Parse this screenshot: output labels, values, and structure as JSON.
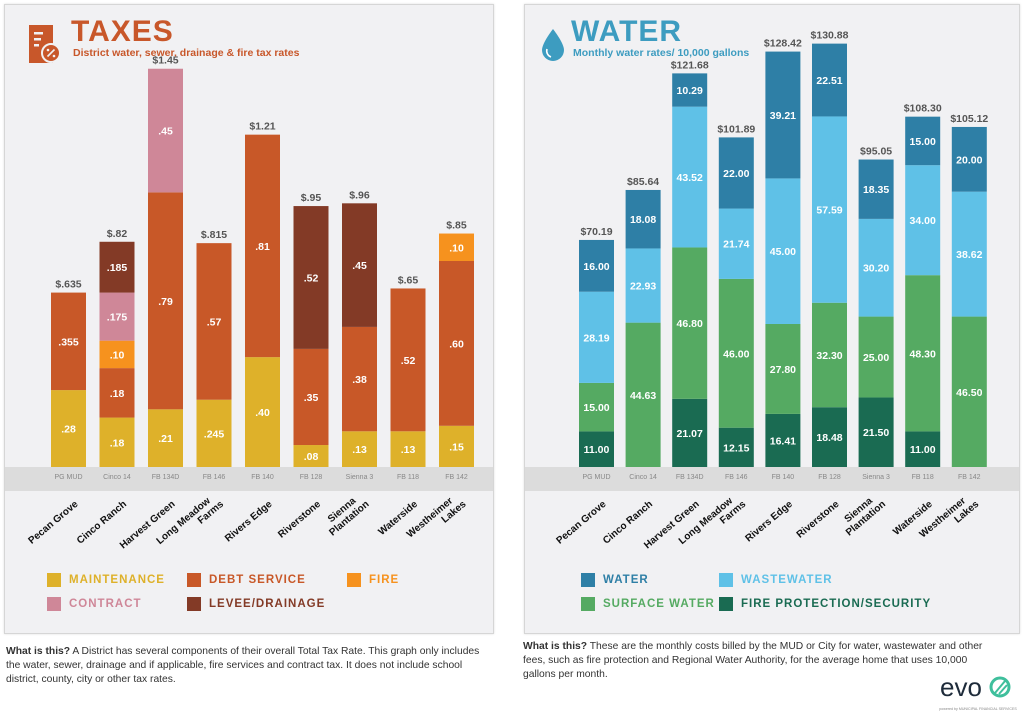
{
  "taxes": {
    "title": "TAXES",
    "subtitle": "District water, sewer, drainage & fire tax rates",
    "icon": "tax-document-percent-icon",
    "accent": "#c8572a",
    "note_bold": "What is this?",
    "note_text": " A District has several components of their overall Total Tax Rate.  This graph only includes the water, sewer, drainage and if applicable, fire services and contract tax.  It does not include school district, county, city or other tax rates."
  },
  "water": {
    "title": "WATER",
    "subtitle": "Monthly water rates/ 10,000 gallons",
    "icon": "water-drop-icon",
    "accent": "#3d9cc0",
    "note_bold": "What is this?",
    "note_text": " These are the monthly costs billed by the MUD or City for water, wastewater and other fees, such as fire protection and Regional Water Authority, for the average home that uses 10,000 gallons per month."
  },
  "logo": {
    "text": "evo",
    "tagline": "powered by MUNICIPAL FINANCIAL SERVICES"
  },
  "chart_data": [
    {
      "type": "bar",
      "stacked": true,
      "title": "TAXES",
      "subtitle": "District water, sewer, drainage & fire tax rates",
      "categories": [
        "Pecan Grove",
        "Cinco Ranch",
        "Harvest Green",
        "Long Meadow Farms",
        "Rivers Edge",
        "Riverstone",
        "Sienna Plantation",
        "Waterside",
        "Westheimer Lakes"
      ],
      "category_lines": [
        [
          "Pecan Grove"
        ],
        [
          "Cinco Ranch"
        ],
        [
          "Harvest Green"
        ],
        [
          "Long Meadow",
          "Farms"
        ],
        [
          "Rivers Edge"
        ],
        [
          "Riverstone"
        ],
        [
          "Sienna",
          "Plantation"
        ],
        [
          "Waterside"
        ],
        [
          "Westheimer",
          "Lakes"
        ]
      ],
      "district_codes": [
        "PG MUD",
        "Cinco 14",
        "FB 134D",
        "FB 146",
        "FB 140",
        "FB 128",
        "Sienna 3",
        "FB 118",
        "FB 142"
      ],
      "totals": [
        "$.635",
        "$.82",
        "$1.45",
        "$.815",
        "$1.21",
        "$.95",
        "$.96",
        "$.65",
        "$.85"
      ],
      "ylim": [
        0,
        1.5
      ],
      "grid": false,
      "legend_position": "bottom",
      "series": [
        {
          "name": "MAINTENANCE",
          "color": "#deb12a",
          "values": [
            0.28,
            0.18,
            0.21,
            0.245,
            0.4,
            0.08,
            0.13,
            0.13,
            0.15
          ],
          "labels": [
            ".28",
            ".18",
            ".21",
            ".245",
            ".40",
            ".08",
            ".13",
            ".13",
            ".15"
          ]
        },
        {
          "name": "DEBT SERVICE",
          "color": "#c85828",
          "values": [
            0.355,
            0.18,
            0.79,
            0.57,
            0.81,
            0.35,
            0.38,
            0.52,
            0.6
          ],
          "labels": [
            ".355",
            ".18",
            ".79",
            ".57",
            ".81",
            ".35",
            ".38",
            ".52",
            ".60"
          ]
        },
        {
          "name": "FIRE",
          "color": "#f6921e",
          "values": [
            0,
            0.1,
            0,
            0,
            0,
            0,
            0,
            0,
            0.1
          ],
          "labels": [
            "",
            ".10",
            "",
            "",
            "",
            "",
            "",
            "",
            ".10"
          ]
        },
        {
          "name": "CONTRACT",
          "color": "#cf8798",
          "values": [
            0,
            0.175,
            0.45,
            0,
            0,
            0,
            0,
            0,
            0
          ],
          "labels": [
            "",
            ".175",
            ".45",
            "",
            "",
            "",
            "",
            "",
            ""
          ]
        },
        {
          "name": "LEVEE/DRAINAGE",
          "color": "#833a26",
          "values": [
            0,
            0.185,
            0,
            0,
            0,
            0.52,
            0.45,
            0,
            0
          ],
          "labels": [
            "",
            ".185",
            "",
            "",
            "",
            ".52",
            ".45",
            "",
            ""
          ]
        }
      ],
      "legend_layout": [
        [
          "MAINTENANCE",
          "DEBT SERVICE",
          "FIRE"
        ],
        [
          "CONTRACT",
          "LEVEE/DRAINAGE"
        ]
      ]
    },
    {
      "type": "bar",
      "stacked": true,
      "title": "WATER",
      "subtitle": "Monthly water rates/ 10,000 gallons",
      "categories": [
        "Pecan Grove",
        "Cinco Ranch",
        "Harvest Green",
        "Long Meadow Farms",
        "Rivers Edge",
        "Riverstone",
        "Sienna Plantation",
        "Waterside",
        "Westheimer Lakes"
      ],
      "category_lines": [
        [
          "Pecan Grove"
        ],
        [
          "Cinco Ranch"
        ],
        [
          "Harvest Green"
        ],
        [
          "Long Meadow",
          "Farms"
        ],
        [
          "Rivers Edge"
        ],
        [
          "Riverstone"
        ],
        [
          "Sienna",
          "Plantation"
        ],
        [
          "Waterside"
        ],
        [
          "Westheimer",
          "Lakes"
        ]
      ],
      "district_codes": [
        "PG MUD",
        "Cinco 14",
        "FB 134D",
        "FB 146",
        "FB 140",
        "FB 128",
        "Sienna 3",
        "FB 118",
        "FB 142"
      ],
      "totals": [
        "$70.19",
        "$85.64",
        "$121.68",
        "$101.89",
        "$128.42",
        "$130.88",
        "$95.05",
        "$108.30",
        "$105.12"
      ],
      "ylim": [
        0,
        132
      ],
      "grid": false,
      "legend_position": "bottom",
      "series": [
        {
          "name": "FIRE PROTECTION/SECURITY",
          "color": "#1a6b52",
          "values": [
            11.0,
            0,
            21.07,
            12.15,
            16.41,
            18.48,
            21.5,
            11.0,
            0
          ],
          "labels": [
            "11.00",
            "",
            "21.07",
            "12.15",
            "16.41",
            "18.48",
            "21.50",
            "11.00",
            ""
          ]
        },
        {
          "name": "SURFACE WATER",
          "color": "#55aa62",
          "values": [
            15.0,
            44.63,
            46.8,
            46.0,
            27.8,
            32.3,
            25.0,
            48.3,
            46.5
          ],
          "labels": [
            "15.00",
            "44.63",
            "46.80",
            "46.00",
            "27.80",
            "32.30",
            "25.00",
            "48.30",
            "46.50"
          ]
        },
        {
          "name": "WASTEWATER",
          "color": "#5fc1e7",
          "values": [
            28.19,
            22.93,
            43.52,
            21.74,
            45.0,
            57.59,
            30.2,
            34.0,
            38.62
          ],
          "labels": [
            "28.19",
            "22.93",
            "43.52",
            "21.74",
            "45.00",
            "57.59",
            "30.20",
            "34.00",
            "38.62"
          ]
        },
        {
          "name": "WATER",
          "color": "#2e7fa6",
          "values": [
            16.0,
            18.08,
            10.29,
            22.0,
            39.21,
            22.51,
            18.35,
            15.0,
            20.0
          ],
          "labels": [
            "16.00",
            "18.08",
            "10.29",
            "22.00",
            "39.21",
            "22.51",
            "18.35",
            "15.00",
            "20.00"
          ]
        }
      ],
      "legend_layout": [
        [
          "WATER",
          "WASTEWATER"
        ],
        [
          "SURFACE WATER",
          "FIRE PROTECTION/SECURITY"
        ]
      ]
    }
  ]
}
